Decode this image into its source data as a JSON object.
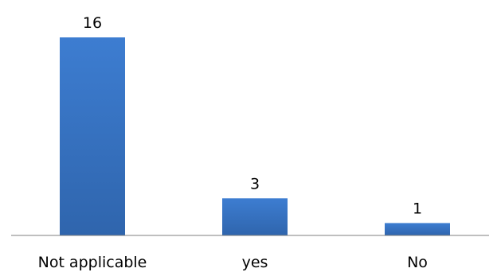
{
  "chart_data": {
    "type": "bar",
    "title": "",
    "xlabel": "",
    "ylabel": "",
    "categories": [
      "Not applicable",
      "yes",
      "No"
    ],
    "values": [
      16,
      3,
      1
    ],
    "data_labels": [
      "16",
      "3",
      "1"
    ],
    "ylim": [
      0,
      16
    ],
    "grid": false,
    "legend": "none",
    "bar_color_top": "#3d7dd1",
    "bar_color_bottom": "#2f65ad",
    "axis_color": "#7f7f7f"
  }
}
